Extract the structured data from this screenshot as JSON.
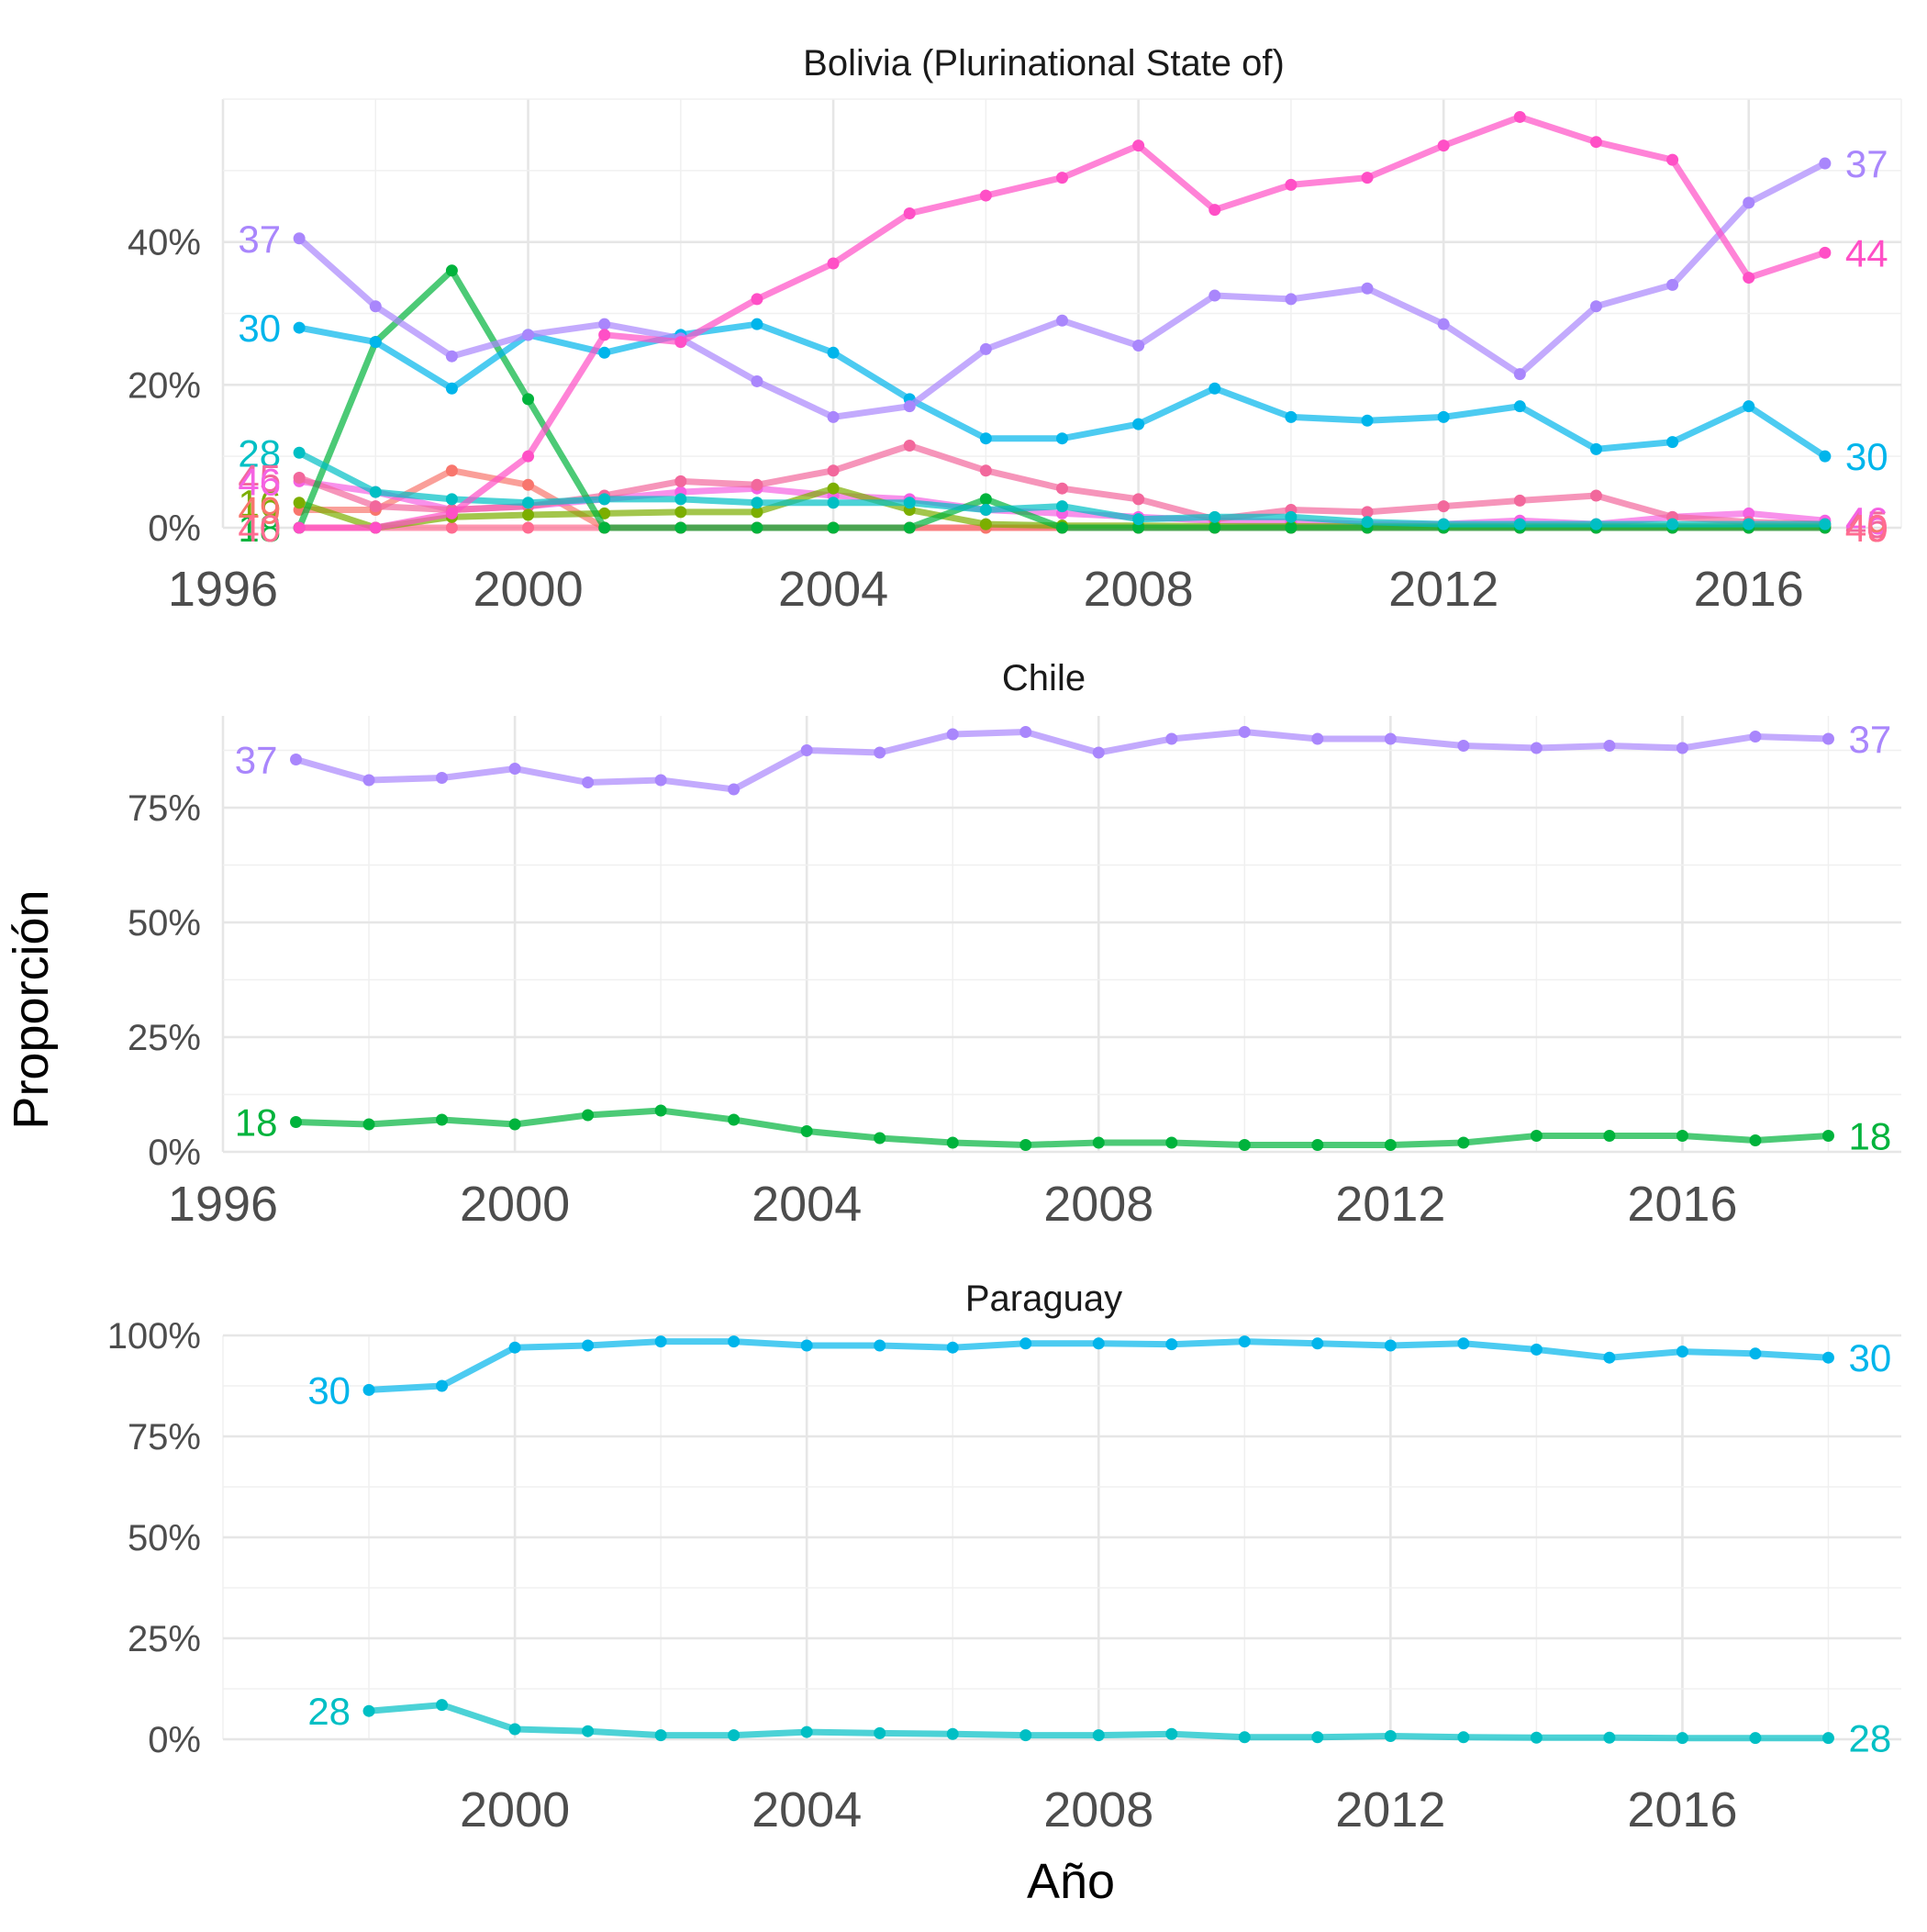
{
  "chart_data": [
    {
      "type": "line",
      "title": "Bolivia (Plurinational State of)",
      "xlim": [
        1996,
        2018
      ],
      "ylim": [
        0,
        0.6
      ],
      "x_ticks": [
        1996,
        2000,
        2004,
        2008,
        2012,
        2016
      ],
      "x_tick_labels": [
        "1996",
        "2000",
        "2004",
        "2008",
        "2012",
        "2016"
      ],
      "y_ticks": [
        0,
        0.2,
        0.4
      ],
      "y_tick_labels": [
        "0%",
        "20%",
        "40%"
      ],
      "grid": true,
      "series": [
        {
          "label": "44",
          "color": "#ff4fc6",
          "start_label": "",
          "end_label": "44",
          "x": [
            1997,
            1998,
            1999,
            2000,
            2001,
            2002,
            2003,
            2004,
            2005,
            2006,
            2007,
            2008,
            2009,
            2010,
            2011,
            2012,
            2013,
            2014,
            2015,
            2016,
            2017
          ],
          "y": [
            0,
            0,
            0.02,
            0.1,
            0.27,
            0.26,
            0.32,
            0.37,
            0.44,
            0.465,
            0.49,
            0.535,
            0.445,
            0.48,
            0.49,
            0.535,
            0.575,
            0.54,
            0.515,
            0.35,
            0.385
          ]
        },
        {
          "label": "37",
          "color": "#a986fc",
          "start_label": "37",
          "end_label": "37",
          "x": [
            1997,
            1998,
            1999,
            2000,
            2001,
            2002,
            2003,
            2004,
            2005,
            2006,
            2007,
            2008,
            2009,
            2010,
            2011,
            2012,
            2013,
            2014,
            2015,
            2016,
            2017
          ],
          "y": [
            0.405,
            0.31,
            0.24,
            0.27,
            0.285,
            0.265,
            0.205,
            0.155,
            0.17,
            0.25,
            0.29,
            0.255,
            0.325,
            0.32,
            0.335,
            0.285,
            0.215,
            0.31,
            0.34,
            0.455,
            0.51
          ]
        },
        {
          "label": "30",
          "color": "#00b5eb",
          "start_label": "30",
          "end_label": "30",
          "x": [
            1997,
            1998,
            1999,
            2000,
            2001,
            2002,
            2003,
            2004,
            2005,
            2006,
            2007,
            2008,
            2009,
            2010,
            2011,
            2012,
            2013,
            2014,
            2015,
            2016,
            2017
          ],
          "y": [
            0.28,
            0.26,
            0.195,
            0.27,
            0.245,
            0.27,
            0.285,
            0.245,
            0.18,
            0.125,
            0.125,
            0.145,
            0.195,
            0.155,
            0.15,
            0.155,
            0.17,
            0.11,
            0.12,
            0.17,
            0.1
          ]
        },
        {
          "label": "28",
          "color": "#00bfc4",
          "start_label": "28",
          "end_label": "",
          "x": [
            1997,
            1998,
            1999,
            2000,
            2001,
            2002,
            2003,
            2004,
            2005,
            2006,
            2007,
            2008,
            2009,
            2010,
            2011,
            2012,
            2013,
            2014,
            2015,
            2016,
            2017
          ],
          "y": [
            0.105,
            0.05,
            0.04,
            0.035,
            0.04,
            0.04,
            0.035,
            0.035,
            0.035,
            0.025,
            0.03,
            0.012,
            0.015,
            0.015,
            0.008,
            0.005,
            0.005,
            0.005,
            0.005,
            0.005,
            0.005
          ]
        },
        {
          "label": "18",
          "color": "#00b33c",
          "start_label": "18",
          "end_label": "",
          "x": [
            1997,
            1998,
            1999,
            2000,
            2001,
            2002,
            2003,
            2004,
            2005,
            2006,
            2007,
            2008,
            2009,
            2010,
            2011,
            2012,
            2013,
            2014,
            2015,
            2016,
            2017
          ],
          "y": [
            0,
            0.26,
            0.36,
            0.18,
            0,
            0,
            0,
            0,
            0,
            0.04,
            0,
            0,
            0,
            0,
            0,
            0,
            0,
            0,
            0,
            0,
            0
          ]
        },
        {
          "label": "16",
          "color": "#7cae00",
          "start_label": "16",
          "end_label": "",
          "x": [
            1997,
            1998,
            1999,
            2000,
            2001,
            2002,
            2003,
            2004,
            2005,
            2006,
            2007,
            2008,
            2009,
            2010,
            2011,
            2012,
            2013,
            2014,
            2015,
            2016,
            2017
          ],
          "y": [
            0.035,
            0,
            0.015,
            0.018,
            0.02,
            0.022,
            0.022,
            0.055,
            0.025,
            0.005,
            0.003,
            0.003,
            0.002,
            0.002,
            0.002,
            0.002,
            0.002,
            0.002,
            0.002,
            0.002,
            0.002
          ]
        },
        {
          "label": "45",
          "color": "#f2689c",
          "start_label": "45",
          "end_label": "45",
          "x": [
            1997,
            1998,
            1999,
            2000,
            2001,
            2002,
            2003,
            2004,
            2005,
            2006,
            2007,
            2008,
            2009,
            2010,
            2011,
            2012,
            2013,
            2014,
            2015,
            2016,
            2017
          ],
          "y": [
            0.07,
            0.03,
            0.025,
            0.03,
            0.045,
            0.065,
            0.06,
            0.08,
            0.115,
            0.08,
            0.055,
            0.04,
            0.012,
            0.025,
            0.022,
            0.03,
            0.038,
            0.045,
            0.015,
            0.008,
            0.005
          ]
        },
        {
          "label": "46",
          "color": "#f562e3",
          "start_label": "46",
          "end_label": "46",
          "x": [
            1997,
            1998,
            1999,
            2000,
            2001,
            2002,
            2003,
            2004,
            2005,
            2006,
            2007,
            2008,
            2009,
            2010,
            2011,
            2012,
            2013,
            2014,
            2015,
            2016,
            2017
          ],
          "y": [
            0.065,
            0.05,
            0.025,
            0.03,
            0.04,
            0.05,
            0.055,
            0.045,
            0.04,
            0.025,
            0.02,
            0.015,
            0.01,
            0.008,
            0.005,
            0.005,
            0.01,
            0.005,
            0.015,
            0.02,
            0.01
          ]
        },
        {
          "label": "49",
          "color": "#f8766d",
          "start_label": "49",
          "end_label": "49",
          "x": [
            1997,
            1998,
            1999,
            2000,
            2001,
            2002,
            2003,
            2004,
            2005,
            2006,
            2007,
            2008,
            2009,
            2010,
            2011,
            2012,
            2013,
            2014,
            2015,
            2016,
            2017
          ],
          "y": [
            0.025,
            0.025,
            0.08,
            0.06,
            0,
            0,
            0,
            0,
            0,
            0,
            0,
            0,
            0,
            0,
            0,
            0,
            0,
            0,
            0,
            0,
            0
          ]
        },
        {
          "label": "40",
          "color": "#ff6c91",
          "start_label": "40",
          "end_label": "40",
          "x": [
            1997,
            1998,
            1999,
            2000,
            2001,
            2002,
            2003,
            2004,
            2005,
            2006,
            2007,
            2008,
            2009,
            2010,
            2011,
            2012,
            2013,
            2014,
            2015,
            2016,
            2017
          ],
          "y": [
            0,
            0,
            0,
            0,
            0,
            0,
            0,
            0,
            0,
            0,
            0,
            0,
            0,
            0,
            0,
            0,
            0,
            0,
            0,
            0,
            0
          ]
        }
      ]
    },
    {
      "type": "line",
      "title": "Chile",
      "xlim": [
        1996,
        2019
      ],
      "ylim": [
        0,
        0.95
      ],
      "x_ticks": [
        1996,
        2000,
        2004,
        2008,
        2012,
        2016
      ],
      "x_tick_labels": [
        "1996",
        "2000",
        "2004",
        "2008",
        "2012",
        "2016"
      ],
      "y_ticks": [
        0,
        0.25,
        0.5,
        0.75
      ],
      "y_tick_labels": [
        "0%",
        "25%",
        "50%",
        "75%"
      ],
      "grid": true,
      "series": [
        {
          "label": "37",
          "color": "#a986fc",
          "start_label": "37",
          "end_label": "37",
          "x": [
            1997,
            1998,
            1999,
            2000,
            2001,
            2002,
            2003,
            2004,
            2005,
            2006,
            2007,
            2008,
            2009,
            2010,
            2011,
            2012,
            2013,
            2014,
            2015,
            2016,
            2017,
            2018
          ],
          "y": [
            0.855,
            0.81,
            0.815,
            0.835,
            0.805,
            0.81,
            0.79,
            0.875,
            0.87,
            0.91,
            0.915,
            0.87,
            0.9,
            0.915,
            0.9,
            0.9,
            0.885,
            0.88,
            0.885,
            0.88,
            0.905,
            0.9
          ]
        },
        {
          "label": "18",
          "color": "#00b33c",
          "start_label": "18",
          "end_label": "18",
          "x": [
            1997,
            1998,
            1999,
            2000,
            2001,
            2002,
            2003,
            2004,
            2005,
            2006,
            2007,
            2008,
            2009,
            2010,
            2011,
            2012,
            2013,
            2014,
            2015,
            2016,
            2017,
            2018
          ],
          "y": [
            0.065,
            0.06,
            0.07,
            0.06,
            0.08,
            0.09,
            0.07,
            0.045,
            0.03,
            0.02,
            0.015,
            0.02,
            0.02,
            0.015,
            0.015,
            0.015,
            0.02,
            0.035,
            0.035,
            0.035,
            0.025,
            0.035
          ]
        }
      ]
    },
    {
      "type": "line",
      "title": "Paraguay",
      "xlim": [
        1996,
        2019
      ],
      "ylim": [
        0,
        1.0
      ],
      "x_ticks": [
        2000,
        2004,
        2008,
        2012,
        2016
      ],
      "x_tick_labels": [
        "2000",
        "2004",
        "2008",
        "2012",
        "2016"
      ],
      "y_ticks": [
        0,
        0.25,
        0.5,
        0.75,
        1.0
      ],
      "y_tick_labels": [
        "0%",
        "25%",
        "50%",
        "75%",
        "100%"
      ],
      "grid": true,
      "series": [
        {
          "label": "30",
          "color": "#00b5eb",
          "start_label": "30",
          "end_label": "30",
          "x": [
            1998,
            1999,
            2000,
            2001,
            2002,
            2003,
            2004,
            2005,
            2006,
            2007,
            2008,
            2009,
            2010,
            2011,
            2012,
            2013,
            2014,
            2015,
            2016,
            2017,
            2018
          ],
          "y": [
            0.865,
            0.875,
            0.97,
            0.975,
            0.985,
            0.985,
            0.975,
            0.975,
            0.97,
            0.98,
            0.98,
            0.978,
            0.985,
            0.98,
            0.975,
            0.98,
            0.965,
            0.945,
            0.96,
            0.955,
            0.945
          ]
        },
        {
          "label": "28",
          "color": "#00bfc4",
          "start_label": "28",
          "end_label": "28",
          "x": [
            1998,
            1999,
            2000,
            2001,
            2002,
            2003,
            2004,
            2005,
            2006,
            2007,
            2008,
            2009,
            2010,
            2011,
            2012,
            2013,
            2014,
            2015,
            2016,
            2017,
            2018
          ],
          "y": [
            0.07,
            0.085,
            0.025,
            0.02,
            0.01,
            0.01,
            0.018,
            0.015,
            0.013,
            0.01,
            0.01,
            0.013,
            0.005,
            0.005,
            0.008,
            0.005,
            0.004,
            0.004,
            0.003,
            0.003,
            0.003
          ]
        }
      ]
    }
  ],
  "shared": {
    "ylabel": "Proporción",
    "xlabel": "Año"
  }
}
